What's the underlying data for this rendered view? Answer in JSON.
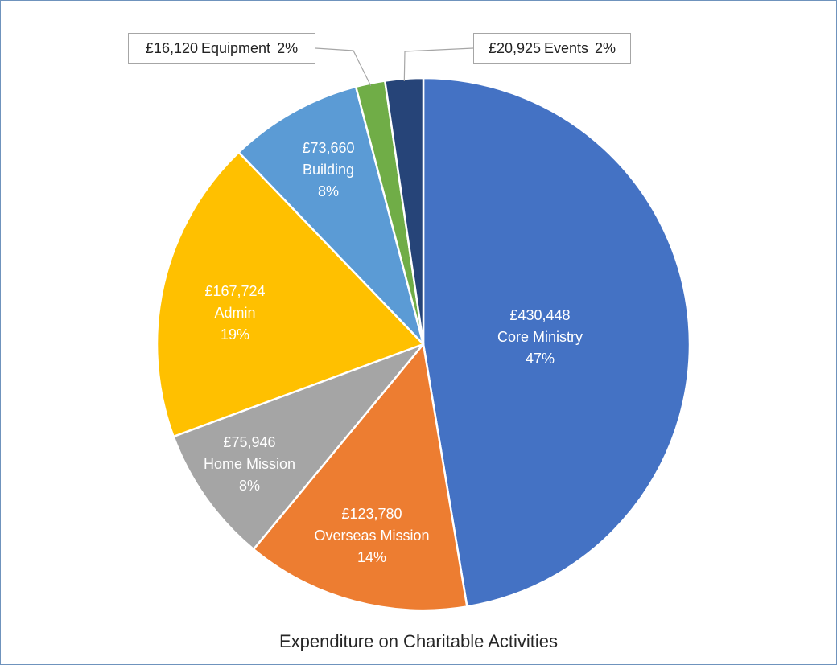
{
  "chart_data": {
    "type": "pie",
    "title": "Expenditure on Charitable Activities",
    "slices": [
      {
        "label": "Core Ministry",
        "value": 430448,
        "value_text": "£430,448",
        "percent_text": "47%",
        "color": "#4472c4"
      },
      {
        "label": "Overseas Mission",
        "value": 123780,
        "value_text": "£123,780",
        "percent_text": "14%",
        "color": "#ed7d31"
      },
      {
        "label": "Home Mission",
        "value": 75946,
        "value_text": "£75,946",
        "percent_text": "8%",
        "color": "#a5a5a5"
      },
      {
        "label": "Admin",
        "value": 167724,
        "value_text": "£167,724",
        "percent_text": "19%",
        "color": "#ffc000"
      },
      {
        "label": "Building",
        "value": 73660,
        "value_text": "£73,660",
        "percent_text": "8%",
        "color": "#5b9bd5"
      },
      {
        "label": "Equipment",
        "value": 16120,
        "value_text": "£16,120",
        "percent_text": "2%",
        "color": "#70ad47"
      },
      {
        "label": "Events",
        "value": 20925,
        "value_text": "£20,925",
        "percent_text": "2%",
        "color": "#264478"
      }
    ],
    "legend": "none"
  }
}
